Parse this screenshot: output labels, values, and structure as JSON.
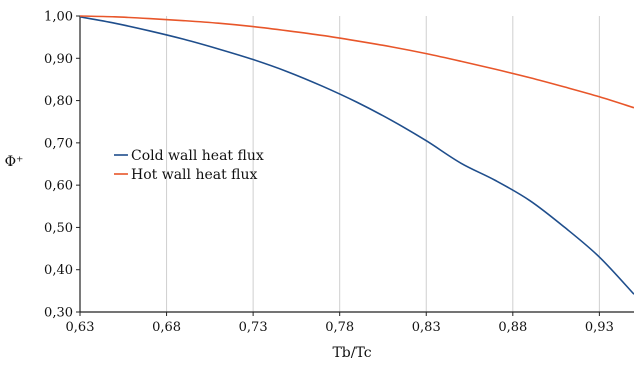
{
  "chart_data": {
    "type": "line",
    "xlabel": "Tb/Tc",
    "ylabel": "Φ⁺",
    "xlim": [
      0.63,
      0.95
    ],
    "ylim": [
      0.3,
      1.0
    ],
    "x_ticks": [
      "0,63",
      "0,68",
      "0,73",
      "0,78",
      "0,83",
      "0,88",
      "0,93"
    ],
    "x_tick_values": [
      0.63,
      0.68,
      0.73,
      0.78,
      0.83,
      0.88,
      0.93
    ],
    "y_ticks": [
      "0,30",
      "0,40",
      "0,50",
      "0,60",
      "0,70",
      "0,80",
      "0,90",
      "1,00"
    ],
    "y_tick_values": [
      0.3,
      0.4,
      0.5,
      0.6,
      0.7,
      0.8,
      0.9,
      1.0
    ],
    "grid": "vertical",
    "legend_position": "center-left",
    "series": [
      {
        "name": "Cold wall heat flux",
        "color": "#1f4e8c",
        "x": [
          0.63,
          0.65,
          0.67,
          0.69,
          0.71,
          0.73,
          0.75,
          0.77,
          0.79,
          0.81,
          0.83,
          0.85,
          0.87,
          0.89,
          0.91,
          0.93,
          0.95
        ],
        "y": [
          0.998,
          0.983,
          0.965,
          0.945,
          0.922,
          0.897,
          0.868,
          0.834,
          0.796,
          0.753,
          0.705,
          0.652,
          0.611,
          0.563,
          0.5,
          0.43,
          0.342
        ]
      },
      {
        "name": "Hot wall heat flux",
        "color": "#e8562a",
        "x": [
          0.63,
          0.65,
          0.67,
          0.69,
          0.71,
          0.73,
          0.75,
          0.77,
          0.79,
          0.81,
          0.83,
          0.85,
          0.87,
          0.89,
          0.91,
          0.93,
          0.95
        ],
        "y": [
          1.0,
          0.998,
          0.994,
          0.989,
          0.983,
          0.975,
          0.965,
          0.954,
          0.941,
          0.927,
          0.911,
          0.893,
          0.874,
          0.854,
          0.832,
          0.809,
          0.783
        ]
      }
    ]
  }
}
